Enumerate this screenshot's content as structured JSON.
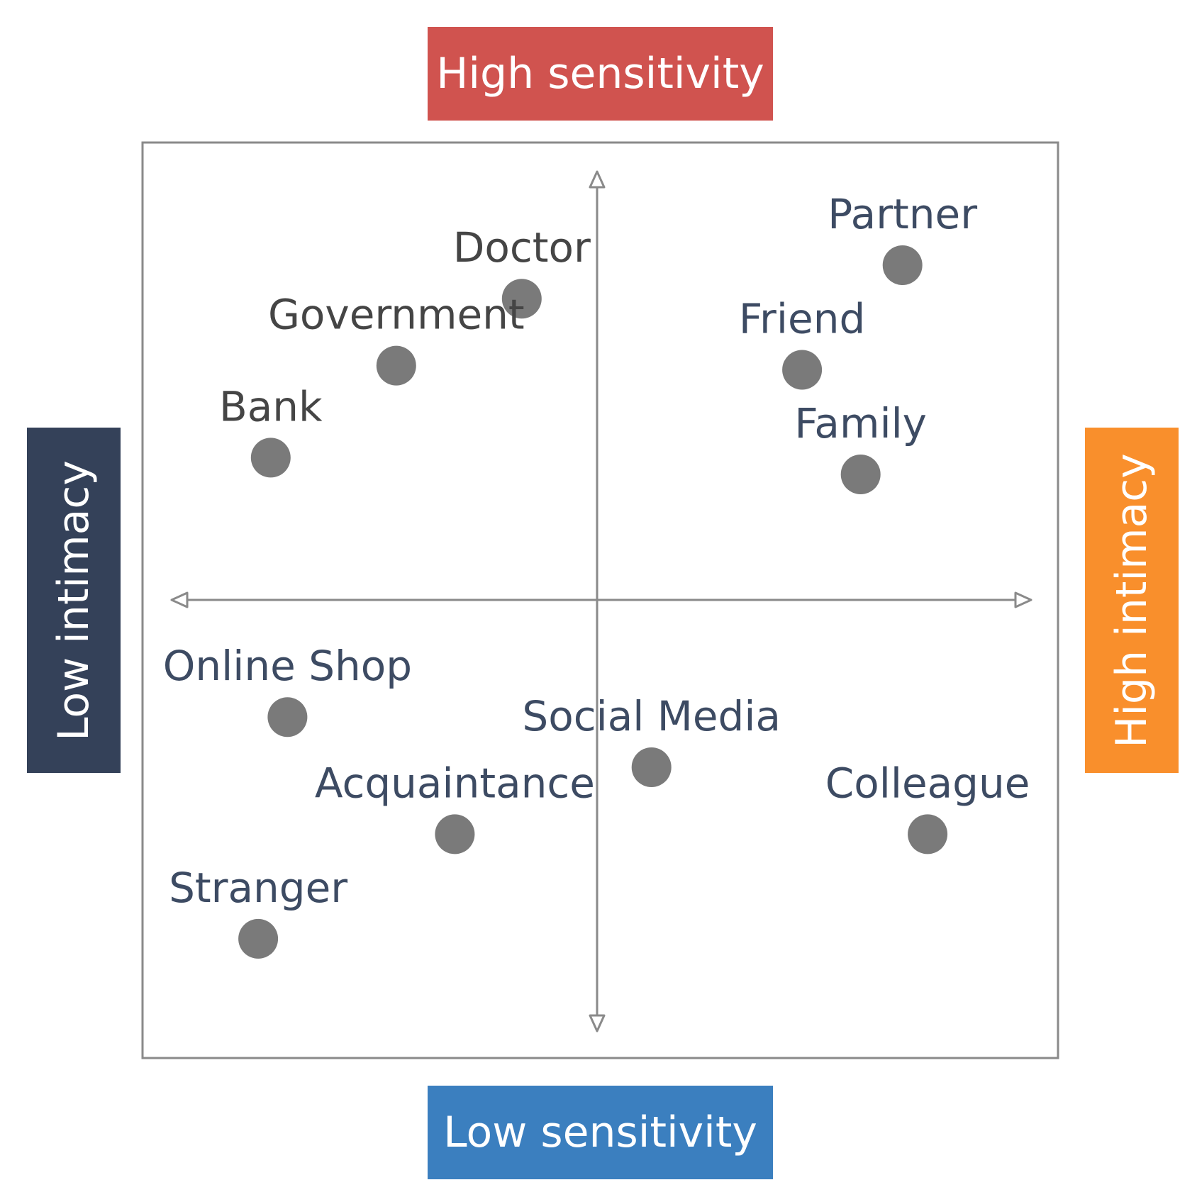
{
  "labels": {
    "top": "High sensitivity",
    "bottom": "Low sensitivity",
    "left": "Low intimacy",
    "right": "High intimacy"
  },
  "colors": {
    "top": "#d0534f",
    "bottom": "#3b7fbf",
    "left": "#344159",
    "right": "#f98f2c",
    "point": "#7a7a7a",
    "text_dark": "#454545",
    "text_blue": "#3d4b63",
    "axis": "#8a8a8a",
    "frame": "#8a8a8a"
  },
  "chart_data": {
    "type": "scatter",
    "xlim": [
      -1,
      1
    ],
    "ylim": [
      -1,
      1
    ],
    "grid": false,
    "points": [
      {
        "label": "Partner",
        "x": 0.73,
        "y": 0.8,
        "label_color": "text_blue"
      },
      {
        "label": "Friend",
        "x": 0.49,
        "y": 0.55,
        "label_color": "text_blue"
      },
      {
        "label": "Family",
        "x": 0.63,
        "y": 0.3,
        "label_color": "text_blue"
      },
      {
        "label": "Doctor",
        "x": -0.18,
        "y": 0.72,
        "label_color": "text_dark"
      },
      {
        "label": "Government",
        "x": -0.48,
        "y": 0.56,
        "label_color": "text_dark"
      },
      {
        "label": "Bank",
        "x": -0.78,
        "y": 0.34,
        "label_color": "text_dark"
      },
      {
        "label": "Online Shop",
        "x": -0.74,
        "y": -0.28,
        "label_color": "text_blue"
      },
      {
        "label": "Acquaintance",
        "x": -0.34,
        "y": -0.56,
        "label_color": "text_blue"
      },
      {
        "label": "Stranger",
        "x": -0.81,
        "y": -0.81,
        "label_color": "text_blue"
      },
      {
        "label": "Social Media",
        "x": 0.13,
        "y": -0.4,
        "label_color": "text_blue"
      },
      {
        "label": "Colleague",
        "x": 0.79,
        "y": -0.56,
        "label_color": "text_blue"
      }
    ]
  }
}
